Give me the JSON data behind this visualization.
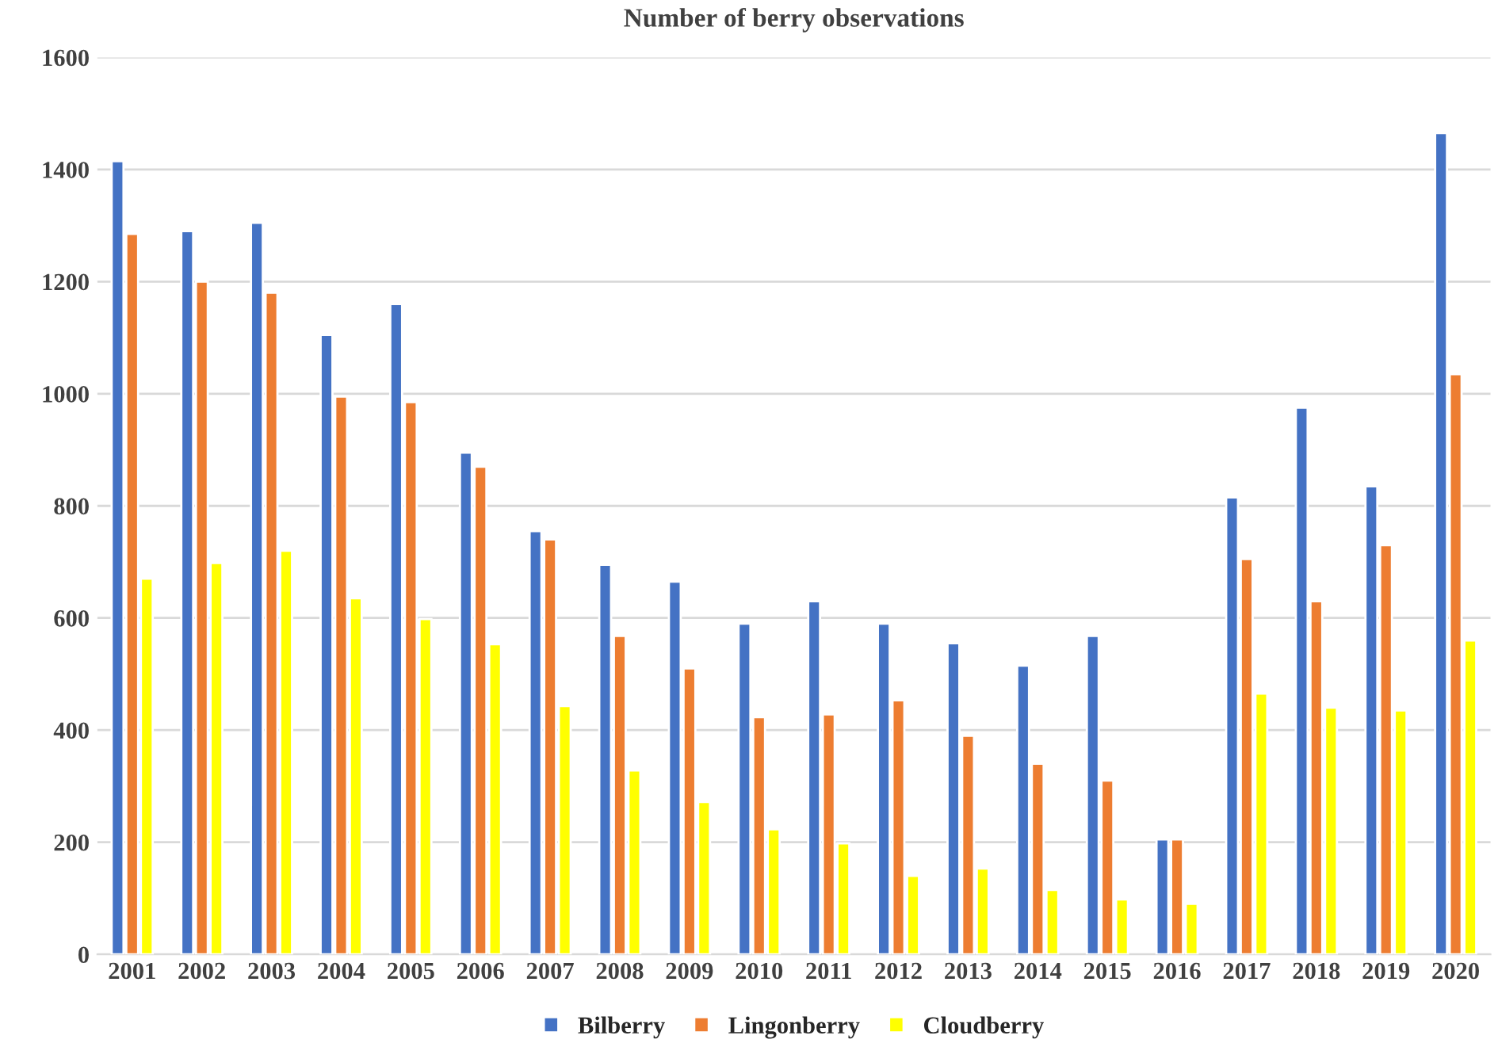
{
  "chart_data": {
    "type": "bar",
    "title": "Number of berry observations",
    "categories": [
      "2001",
      "2002",
      "2003",
      "2004",
      "2005",
      "2006",
      "2007",
      "2008",
      "2009",
      "2010",
      "2011",
      "2012",
      "2013",
      "2014",
      "2015",
      "2016",
      "2017",
      "2018",
      "2019",
      "2020"
    ],
    "series": [
      {
        "name": "Bilberry",
        "color": "#4472c4",
        "values": [
          1415,
          1290,
          1305,
          1105,
          1160,
          895,
          755,
          695,
          665,
          590,
          630,
          590,
          555,
          515,
          568,
          205,
          815,
          975,
          835,
          1465
        ]
      },
      {
        "name": "Lingonberry",
        "color": "#ed7d31",
        "values": [
          1285,
          1200,
          1180,
          995,
          985,
          870,
          740,
          568,
          510,
          423,
          428,
          453,
          390,
          340,
          310,
          205,
          705,
          630,
          730,
          1035
        ]
      },
      {
        "name": "Cloudberry",
        "color": "#ffff00",
        "values": [
          670,
          698,
          720,
          635,
          598,
          553,
          443,
          328,
          272,
          223,
          198,
          140,
          153,
          115,
          98,
          90,
          465,
          440,
          435,
          560
        ]
      }
    ],
    "ylim": [
      0,
      1600
    ],
    "yticks": [
      0,
      200,
      400,
      600,
      800,
      1000,
      1200,
      1400,
      1600
    ],
    "grid": "y",
    "legend": "bottom"
  }
}
